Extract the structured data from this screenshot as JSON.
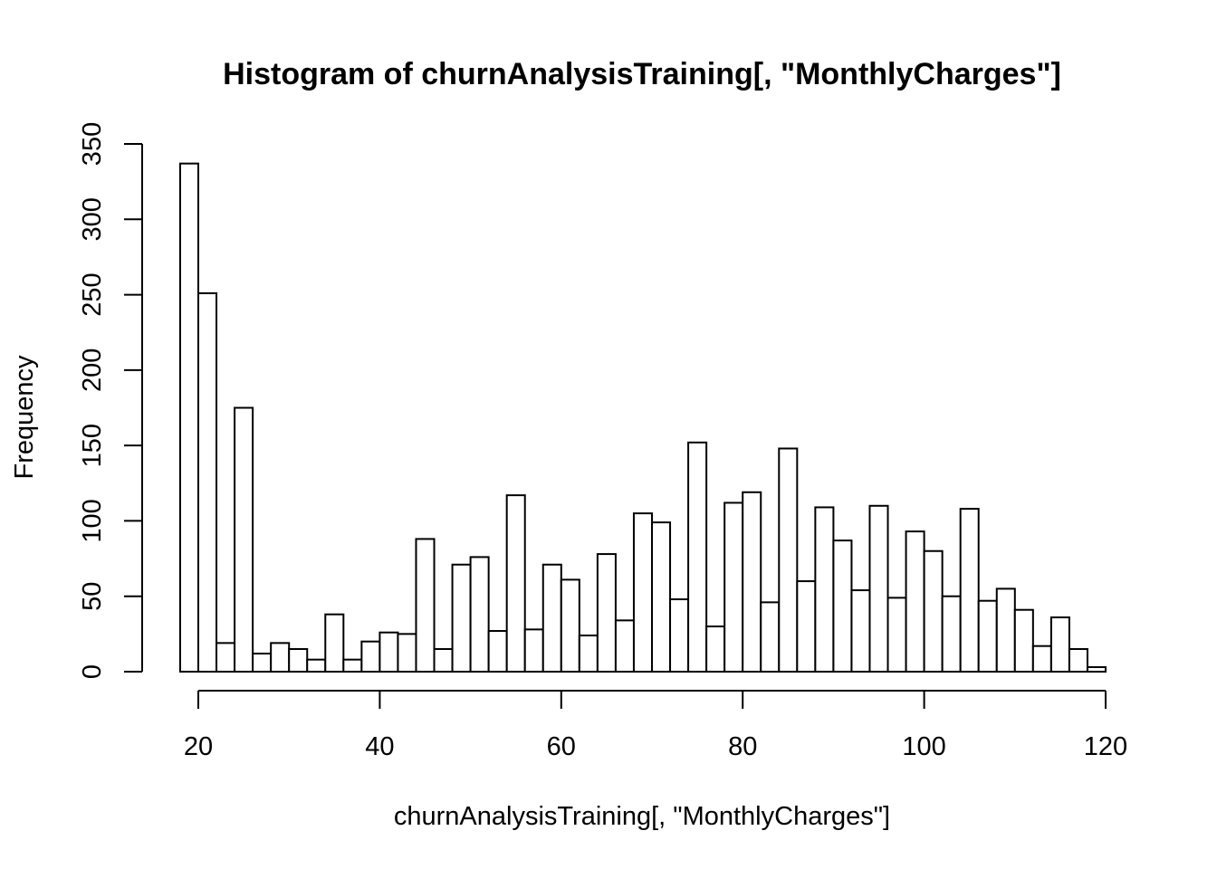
{
  "chart_data": {
    "type": "bar",
    "title": "Histogram of churnAnalysisTraining[, \"MonthlyCharges\"]",
    "xlabel": "churnAnalysisTraining[, \"MonthlyCharges\"]",
    "ylabel": "Frequency",
    "xlim": [
      18,
      120
    ],
    "ylim": [
      0,
      350
    ],
    "bin_width": 2,
    "bin_start": 18,
    "x_ticks": [
      20,
      40,
      60,
      80,
      100,
      120
    ],
    "y_ticks": [
      0,
      50,
      100,
      150,
      200,
      250,
      300,
      350
    ],
    "values": [
      337,
      251,
      19,
      175,
      12,
      19,
      15,
      8,
      38,
      8,
      20,
      26,
      25,
      88,
      15,
      71,
      76,
      27,
      117,
      28,
      71,
      61,
      24,
      78,
      34,
      105,
      99,
      48,
      152,
      30,
      112,
      119,
      46,
      148,
      60,
      109,
      87,
      54,
      110,
      49,
      93,
      80,
      50,
      108,
      47,
      55,
      41,
      17,
      36,
      15,
      3
    ],
    "grid": false,
    "legend": "none",
    "bar_fill": "#ffffff",
    "bar_stroke": "#000000"
  }
}
